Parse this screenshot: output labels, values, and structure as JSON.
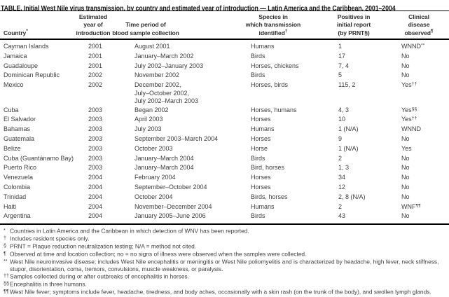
{
  "title": "TABLE. Initial West Nile virus transmission, by country and estimated year of introduction — Latin America and the Caribbean, 2001–2004",
  "colors": {
    "background": "#ffffff",
    "title_text": "#141414",
    "body_text": "#3d3d3d",
    "rule": "#000000"
  },
  "table": {
    "columns": [
      {
        "label": "Country",
        "sup": "*"
      },
      {
        "label": "Estimated\nyear of\nintroduction",
        "sup": ""
      },
      {
        "label": "Time period of\nblood sample collection",
        "sup": ""
      },
      {
        "label": "Species in\nwhich transmission\nidentified",
        "sup": "†"
      },
      {
        "label": "Positives in\ninitial report\n(by PRNT§)",
        "sup": ""
      },
      {
        "label": "Clinical\ndisease\nobserved",
        "sup": "¶"
      }
    ],
    "rows": [
      {
        "country": "Cayman Islands",
        "year": "2001",
        "period": "August 2001",
        "species": "Humans",
        "positives": "1",
        "clinical": "WNND",
        "clinical_sup": "**"
      },
      {
        "country": "Jamaica",
        "year": "2001",
        "period": "January–March 2002",
        "species": "Birds",
        "positives": "17",
        "clinical": "No",
        "clinical_sup": ""
      },
      {
        "country": "Guadaloupe",
        "year": "2001",
        "period": "July 2002–January 2003",
        "species": "Horses, chickens",
        "positives": "7, 4",
        "clinical": "No",
        "clinical_sup": ""
      },
      {
        "country": "Dominican Republic",
        "year": "2002",
        "period": "November 2002",
        "species": "Birds",
        "positives": "5",
        "clinical": "No",
        "clinical_sup": ""
      },
      {
        "country": "Mexico",
        "year": "2002",
        "period": "December 2002,\nJuly–October 2002,\nJuly 2002–March 2003",
        "species": "Horses, birds",
        "positives": "115, 2",
        "clinical": "Yes",
        "clinical_sup": "††"
      },
      {
        "country": "Cuba",
        "year": "2003",
        "period": "Began 2002",
        "species": "Horses, humans",
        "positives": "4, 3",
        "clinical": "Yes",
        "clinical_sup": "§§"
      },
      {
        "country": "El Salvador",
        "year": "2003",
        "period": "April 2003",
        "species": "Horses",
        "positives": "10",
        "clinical": "Yes",
        "clinical_sup": "††"
      },
      {
        "country": "Bahamas",
        "year": "2003",
        "period": "July 2003",
        "species": "Humans",
        "positives": "1 (N/A)",
        "clinical": "WNND",
        "clinical_sup": ""
      },
      {
        "country": "Guatemala",
        "year": "2003",
        "period": "September 2003–March 2004",
        "species": "Horses",
        "positives": "9",
        "clinical": "No",
        "clinical_sup": ""
      },
      {
        "country": "Belize",
        "year": "2003",
        "period": "October 2003",
        "species": "Horse",
        "positives": "1 (N/A)",
        "clinical": "Yes",
        "clinical_sup": ""
      },
      {
        "country": "Cuba (Guantánamo Bay)",
        "year": "2003",
        "period": "January–March 2004",
        "species": "Birds",
        "positives": "2",
        "clinical": "No",
        "clinical_sup": ""
      },
      {
        "country": "Puerto Rico",
        "year": "2003",
        "period": "January–March 2004",
        "species": "Bird, horses",
        "positives": "1, 3",
        "clinical": "No",
        "clinical_sup": ""
      },
      {
        "country": "Venezuela",
        "year": "2004",
        "period": "February 2004",
        "species": "Horses",
        "positives": "34",
        "clinical": "No",
        "clinical_sup": ""
      },
      {
        "country": "Colombia",
        "year": "2004",
        "period": "September–October 2004",
        "species": "Horses",
        "positives": "12",
        "clinical": "No",
        "clinical_sup": ""
      },
      {
        "country": "Trinidad",
        "year": "2004",
        "period": "October 2004",
        "species": "Birds, horses",
        "positives": "2, 8 (N/A)",
        "clinical": "No",
        "clinical_sup": ""
      },
      {
        "country": "Haiti",
        "year": "2004",
        "period": "November–December 2004",
        "species": "Humans",
        "positives": "2",
        "clinical": "WNF",
        "clinical_sup": "¶¶"
      },
      {
        "country": "Argentina",
        "year": "2004",
        "period": "January 2005–June 2006",
        "species": "Birds",
        "positives": "43",
        "clinical": "No",
        "clinical_sup": ""
      }
    ]
  },
  "footnotes": [
    {
      "marker": "*",
      "text": "Countries in Latin America and the Caribbean in which detection of WNV has been reported."
    },
    {
      "marker": "†",
      "text": "Includes resident species only."
    },
    {
      "marker": "§",
      "text": "PRNT = Plaque reduction neutralization testing; N/A = method not cited."
    },
    {
      "marker": "¶",
      "text": "Observed at time and location collection; no = no signs of illness were observed when the samples were collected."
    },
    {
      "marker": "**",
      "text": "West Nile neuroinvasive disease; includes West Nile encephalitis or meningitis or West Nile poliomyelitis and is characterized by headache, high fever, neck stiffness, stupor, disorientation, coma, tremors, convulsions, muscle weakness, or paralysis."
    },
    {
      "marker": "††",
      "text": "Samples collected during or after outbreaks of encephalitis in horses."
    },
    {
      "marker": "§§",
      "text": "Encephalitis in three humans."
    },
    {
      "marker": "¶¶",
      "text": "West Nile fever; symptoms include fever, headache, tiredness, and body aches, occasionally with a skin rash (on the trunk of the body), and swollen lymph glands."
    }
  ]
}
